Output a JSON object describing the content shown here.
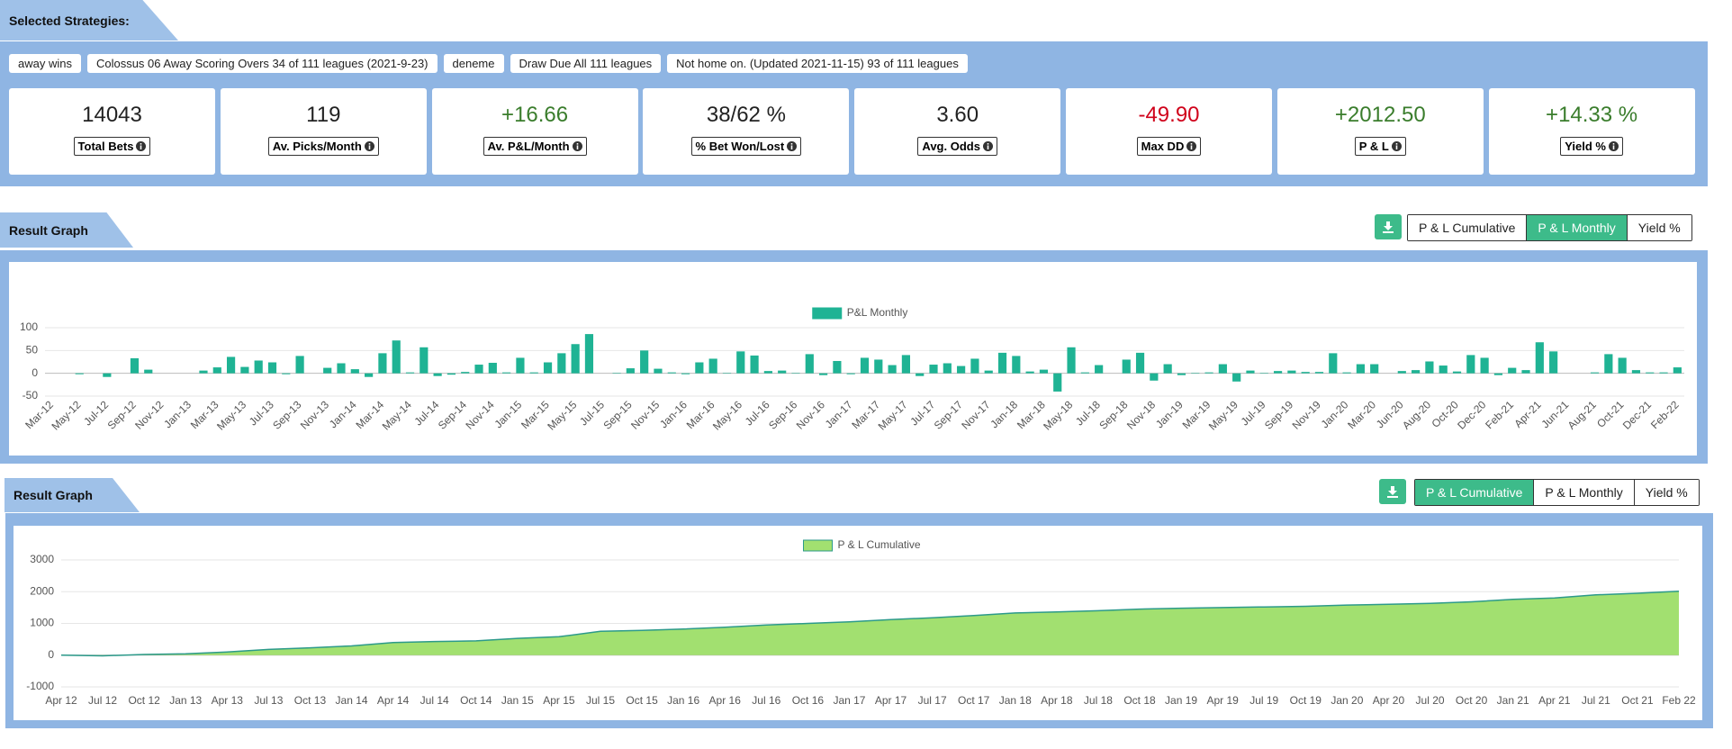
{
  "strategies_header": "Selected Strategies:",
  "strategies": [
    "away wins",
    "Colossus 06 Away Scoring Overs 34 of 111 leagues (2021-9-23)",
    "deneme",
    "Draw Due All 111 leagues",
    "Not home on. (Updated 2021-11-15) 93 of 111 leagues"
  ],
  "stats": [
    {
      "value": "14043",
      "label": "Total Bets",
      "color": "#222222"
    },
    {
      "value": "119",
      "label": "Av. Picks/Month",
      "color": "#222222"
    },
    {
      "value": "+16.66",
      "label": "Av. P&L/Month",
      "color": "#3a7d2c"
    },
    {
      "value": "38/62 %",
      "label": "% Bet Won/Lost",
      "color": "#222222"
    },
    {
      "value": "3.60",
      "label": "Avg. Odds",
      "color": "#222222"
    },
    {
      "value": "-49.90",
      "label": "Max DD",
      "color": "#d0021b"
    },
    {
      "value": "+2012.50",
      "label": "P & L",
      "color": "#3a7d2c"
    },
    {
      "value": "+14.33 %",
      "label": "Yield %",
      "color": "#3a7d2c"
    }
  ],
  "graphs": [
    {
      "header": "Result Graph",
      "buttons": [
        "P & L Cumulative",
        "P & L Monthly",
        "Yield %"
      ],
      "active": 1
    },
    {
      "header": "Result Graph",
      "buttons": [
        "P & L Cumulative",
        "P & L Monthly",
        "Yield %"
      ],
      "active": 0
    }
  ],
  "chart_data": [
    {
      "type": "bar",
      "categories": [
        "Mar-12",
        null,
        "May-12",
        null,
        "Jul-12",
        null,
        "Sep-12",
        null,
        "Nov-12",
        null,
        "Jan-13",
        null,
        "Mar-13",
        null,
        "May-13",
        null,
        "Jul-13",
        null,
        "Sep-13",
        null,
        "Nov-13",
        null,
        "Jan-14",
        null,
        "Mar-14",
        null,
        "May-14",
        null,
        "Jul-14",
        null,
        "Sep-14",
        null,
        "Nov-14",
        null,
        "Jan-15",
        null,
        "Mar-15",
        null,
        "May-15",
        null,
        "Jul-15",
        null,
        "Sep-15",
        null,
        "Nov-15",
        null,
        "Jan-16",
        null,
        "Mar-16",
        null,
        "May-16",
        null,
        "Jul-16",
        null,
        "Sep-16",
        null,
        "Nov-16",
        null,
        "Jan-17",
        null,
        "Mar-17",
        null,
        "May-17",
        null,
        "Jul-17",
        null,
        "Sep-17",
        null,
        "Nov-17",
        null,
        "Jan-18",
        null,
        "Mar-18",
        null,
        "May-18",
        null,
        "Jul-18",
        null,
        "Sep-18",
        null,
        "Nov-18",
        null,
        "Jan-19",
        null,
        "Mar-19",
        null,
        "May-19",
        null,
        "Jul-19",
        null,
        "Sep-19",
        null,
        "Nov-19",
        null,
        "Jan-20",
        null,
        "Mar-20",
        null,
        "Jun-20",
        null,
        "Aug-20",
        null,
        "Oct-20",
        null,
        "Dec-20",
        null,
        "Feb-21",
        null,
        "Apr-21",
        null,
        "Jun-21",
        null,
        "Aug-21",
        null,
        "Oct-21",
        null,
        "Dec-21",
        null,
        "Feb-22"
      ],
      "series": [
        {
          "name": "P&L Monthly",
          "color": "#1fb394",
          "values": [
            0,
            0,
            -2,
            0,
            -8,
            0,
            33,
            8,
            0,
            0,
            0,
            6,
            13,
            36,
            14,
            28,
            24,
            -2,
            38,
            0,
            12,
            22,
            9,
            -8,
            44,
            72,
            2,
            57,
            -6,
            -3,
            3,
            19,
            23,
            2,
            34,
            2,
            24,
            44,
            64,
            86,
            0,
            1,
            11,
            50,
            10,
            2,
            -2,
            24,
            32,
            1,
            48,
            39,
            5,
            6,
            1,
            42,
            -4,
            27,
            -2,
            34,
            30,
            18,
            40,
            -6,
            19,
            22,
            16,
            32,
            6,
            45,
            38,
            4,
            8,
            -40,
            57,
            2,
            18,
            0,
            30,
            45,
            -16,
            20,
            -4,
            1,
            2,
            20,
            -18,
            6,
            1,
            5,
            6,
            3,
            3,
            44,
            2,
            20,
            20,
            0,
            5,
            7,
            26,
            17,
            4,
            40,
            34,
            -4,
            12,
            7,
            68,
            48,
            0,
            0,
            2,
            42,
            34,
            7,
            2,
            2,
            13
          ]
        }
      ],
      "ylim": [
        -50,
        100
      ],
      "yticks": [
        -50,
        0,
        50,
        100
      ],
      "grid": true,
      "legend": "top"
    },
    {
      "type": "area",
      "categories": [
        "Apr 12",
        "Jul 12",
        "Oct 12",
        "Jan 13",
        "Apr 13",
        "Jul 13",
        "Oct 13",
        "Jan 14",
        "Apr 14",
        "Jul 14",
        "Oct 14",
        "Jan 15",
        "Apr 15",
        "Jul 15",
        "Oct 15",
        "Jan 16",
        "Apr 16",
        "Jul 16",
        "Oct 16",
        "Jan 17",
        "Apr 17",
        "Jul 17",
        "Oct 17",
        "Jan 18",
        "Apr 18",
        "Jul 18",
        "Oct 18",
        "Jan 19",
        "Apr 19",
        "Jul 19",
        "Oct 19",
        "Jan 20",
        "Apr 20",
        "Jul 20",
        "Oct 20",
        "Jan 21",
        "Apr 21",
        "Jul 21",
        "Oct 21",
        "Feb 22"
      ],
      "series": [
        {
          "name": "P & L Cumulative",
          "color": "#a2e070",
          "line_color": "#2c9a8a",
          "values": [
            0,
            -20,
            20,
            40,
            100,
            180,
            230,
            290,
            400,
            430,
            450,
            530,
            580,
            750,
            780,
            820,
            880,
            950,
            1000,
            1050,
            1120,
            1180,
            1250,
            1330,
            1360,
            1400,
            1450,
            1480,
            1500,
            1520,
            1540,
            1580,
            1600,
            1630,
            1680,
            1760,
            1800,
            1900,
            1950,
            2012.5
          ]
        }
      ],
      "ylim": [
        -1000,
        3000
      ],
      "yticks": [
        -1000,
        0,
        1000,
        2000,
        3000
      ],
      "grid": true,
      "legend": "top"
    }
  ]
}
